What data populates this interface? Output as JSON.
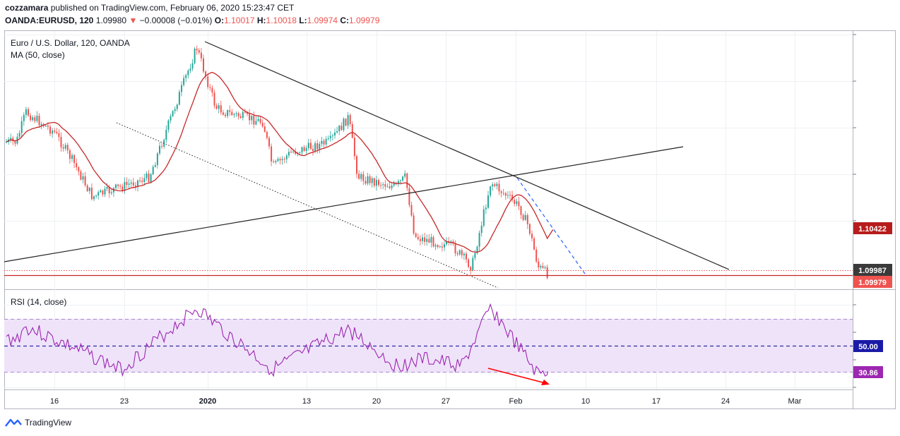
{
  "header": {
    "publisher": "cozzamara",
    "published_text": "published on TradingView.com, February 06, 2020 15:23:47 CET",
    "symbol": "OANDA:EURUSD, 120",
    "last": "1.09980",
    "change_arrow": "▼",
    "change": "−0.00008 (−0.01%)",
    "o_label": "O:",
    "o": "1.10017",
    "h_label": "H:",
    "h": "1.10018",
    "l_label": "L:",
    "l": "1.09974",
    "c_label": "C:",
    "c": "1.09979"
  },
  "legend": {
    "instrument": "Euro / U.S. Dollar, 120, OANDA",
    "ma": "MA (50, close)",
    "rsi": "RSI (14, close)"
  },
  "price_tags": {
    "ma_value": "1.10422",
    "current": "1.09987",
    "close": "1.09979",
    "rsi_mid": "50.00",
    "rsi_value": "30.86"
  },
  "x_ticks": [
    "16",
    "23",
    "2020",
    "13",
    "20",
    "27",
    "Feb",
    "10",
    "17",
    "24",
    "Mar"
  ],
  "brand": "TradingView",
  "colors": {
    "up": "#26a69a",
    "down": "#ef5350",
    "ma": "#c62828",
    "rsi": "#9c27b0",
    "rsi_band": "#e9d8f7",
    "mid": "#2a2aa0",
    "tag_ma": "#b71c1c",
    "tag_cur": "#3a3a3a",
    "tag_close": "#ef5350",
    "tag_mid": "#1a1aa8",
    "tag_rsi": "#9c27b0"
  },
  "chart_data": [
    {
      "type": "candlestick",
      "title": "Euro / U.S. Dollar, 120, OANDA",
      "x_labels": [
        "16",
        "23",
        "2020",
        "13",
        "20",
        "27",
        "Feb",
        "10",
        "17",
        "24",
        "Mar"
      ],
      "price_path": [
        {
          "date": "2019-12-12",
          "price": 1.113
        },
        {
          "date": "2019-12-13",
          "price": 1.116
        },
        {
          "date": "2019-12-16",
          "price": 1.114
        },
        {
          "date": "2019-12-18",
          "price": 1.111
        },
        {
          "date": "2019-12-20",
          "price": 1.1075
        },
        {
          "date": "2019-12-23",
          "price": 1.1085
        },
        {
          "date": "2019-12-26",
          "price": 1.1095
        },
        {
          "date": "2019-12-31",
          "price": 1.1225
        },
        {
          "date": "2020-01-02",
          "price": 1.1165
        },
        {
          "date": "2020-01-03",
          "price": 1.116
        },
        {
          "date": "2020-01-07",
          "price": 1.115
        },
        {
          "date": "2020-01-08",
          "price": 1.1105
        },
        {
          "date": "2020-01-10",
          "price": 1.112
        },
        {
          "date": "2020-01-14",
          "price": 1.113
        },
        {
          "date": "2020-01-16",
          "price": 1.1155
        },
        {
          "date": "2020-01-17",
          "price": 1.1095
        },
        {
          "date": "2020-01-21",
          "price": 1.1085
        },
        {
          "date": "2020-01-22",
          "price": 1.1095
        },
        {
          "date": "2020-01-23",
          "price": 1.1035
        },
        {
          "date": "2020-01-27",
          "price": 1.1025
        },
        {
          "date": "2020-01-29",
          "price": 1.1005
        },
        {
          "date": "2020-01-31",
          "price": 1.109
        },
        {
          "date": "2020-02-03",
          "price": 1.1065
        },
        {
          "date": "2020-02-04",
          "price": 1.1045
        },
        {
          "date": "2020-02-05",
          "price": 1.1005
        },
        {
          "date": "2020-02-06",
          "price": 1.0998
        }
      ],
      "ma_50_last": 1.10422,
      "current_price": 1.09987,
      "close": 1.09979
    },
    {
      "type": "line",
      "title": "RSI (14, close)",
      "levels": [
        70,
        50,
        30
      ],
      "rsi_path": [
        {
          "date": "2019-12-12",
          "value": 55
        },
        {
          "date": "2019-12-13",
          "value": 64
        },
        {
          "date": "2019-12-20",
          "value": 42
        },
        {
          "date": "2019-12-23",
          "value": 32
        },
        {
          "date": "2019-12-31",
          "value": 78
        },
        {
          "date": "2020-01-03",
          "value": 60
        },
        {
          "date": "2020-01-08",
          "value": 32
        },
        {
          "date": "2020-01-16",
          "value": 62
        },
        {
          "date": "2020-01-21",
          "value": 35
        },
        {
          "date": "2020-01-24",
          "value": 40
        },
        {
          "date": "2020-01-28",
          "value": 35
        },
        {
          "date": "2020-01-31",
          "value": 78
        },
        {
          "date": "2020-02-05",
          "value": 28
        },
        {
          "date": "2020-02-06",
          "value": 30.86
        }
      ],
      "last_value": 30.86
    }
  ]
}
